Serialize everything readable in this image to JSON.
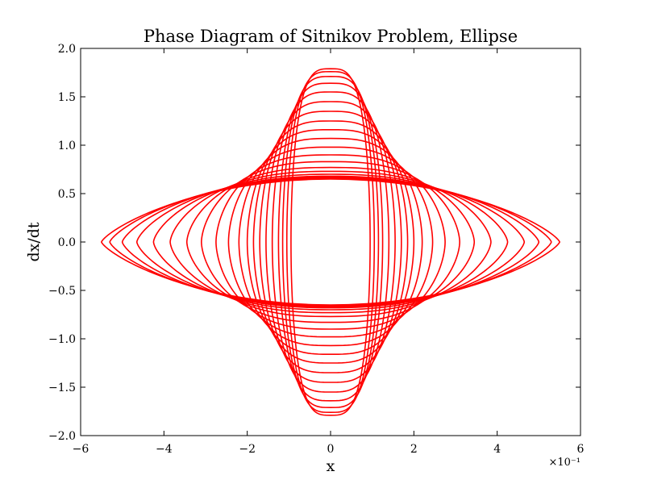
{
  "chart_data": {
    "type": "line",
    "title": "Phase Diagram of Sitnikov Problem, Ellipse",
    "xlabel": "x",
    "ylabel": "dx/dt",
    "x_offset_label": "×10⁻¹",
    "xlim": [
      -6,
      6
    ],
    "ylim": [
      -2.0,
      2.0
    ],
    "xticks": [
      -6,
      -4,
      -2,
      0,
      2,
      4,
      6
    ],
    "xtick_labels": [
      "−6",
      "−4",
      "−2",
      "0",
      "2",
      "4",
      "6"
    ],
    "yticks": [
      -2.0,
      -1.5,
      -1.0,
      -0.5,
      0.0,
      0.5,
      1.0,
      1.5,
      2.0
    ],
    "ytick_labels": [
      "−2.0",
      "−1.5",
      "−1.0",
      "−0.5",
      "0.0",
      "0.5",
      "1.0",
      "1.5",
      "2.0"
    ],
    "grid": false,
    "legend": "none",
    "series_color": "#ff0000",
    "series": [
      {
        "amplitude": 0.95,
        "peak_velocity": 1.79
      },
      {
        "amplitude": 1.05,
        "peak_velocity": 1.76
      },
      {
        "amplitude": 1.15,
        "peak_velocity": 1.71
      },
      {
        "amplitude": 1.25,
        "peak_velocity": 1.64
      },
      {
        "amplitude": 1.4,
        "peak_velocity": 1.55
      },
      {
        "amplitude": 1.55,
        "peak_velocity": 1.45
      },
      {
        "amplitude": 1.7,
        "peak_velocity": 1.35
      },
      {
        "amplitude": 1.85,
        "peak_velocity": 1.25
      },
      {
        "amplitude": 2.0,
        "peak_velocity": 1.16
      },
      {
        "amplitude": 2.2,
        "peak_velocity": 1.07
      },
      {
        "amplitude": 2.45,
        "peak_velocity": 0.98
      },
      {
        "amplitude": 2.75,
        "peak_velocity": 0.9
      },
      {
        "amplitude": 3.1,
        "peak_velocity": 0.83
      },
      {
        "amplitude": 3.45,
        "peak_velocity": 0.77
      },
      {
        "amplitude": 3.85,
        "peak_velocity": 0.73
      },
      {
        "amplitude": 4.25,
        "peak_velocity": 0.7
      },
      {
        "amplitude": 4.65,
        "peak_velocity": 0.68
      },
      {
        "amplitude": 5.0,
        "peak_velocity": 0.67
      },
      {
        "amplitude": 5.3,
        "peak_velocity": 0.66
      },
      {
        "amplitude": 5.5,
        "peak_velocity": 0.65
      }
    ]
  }
}
